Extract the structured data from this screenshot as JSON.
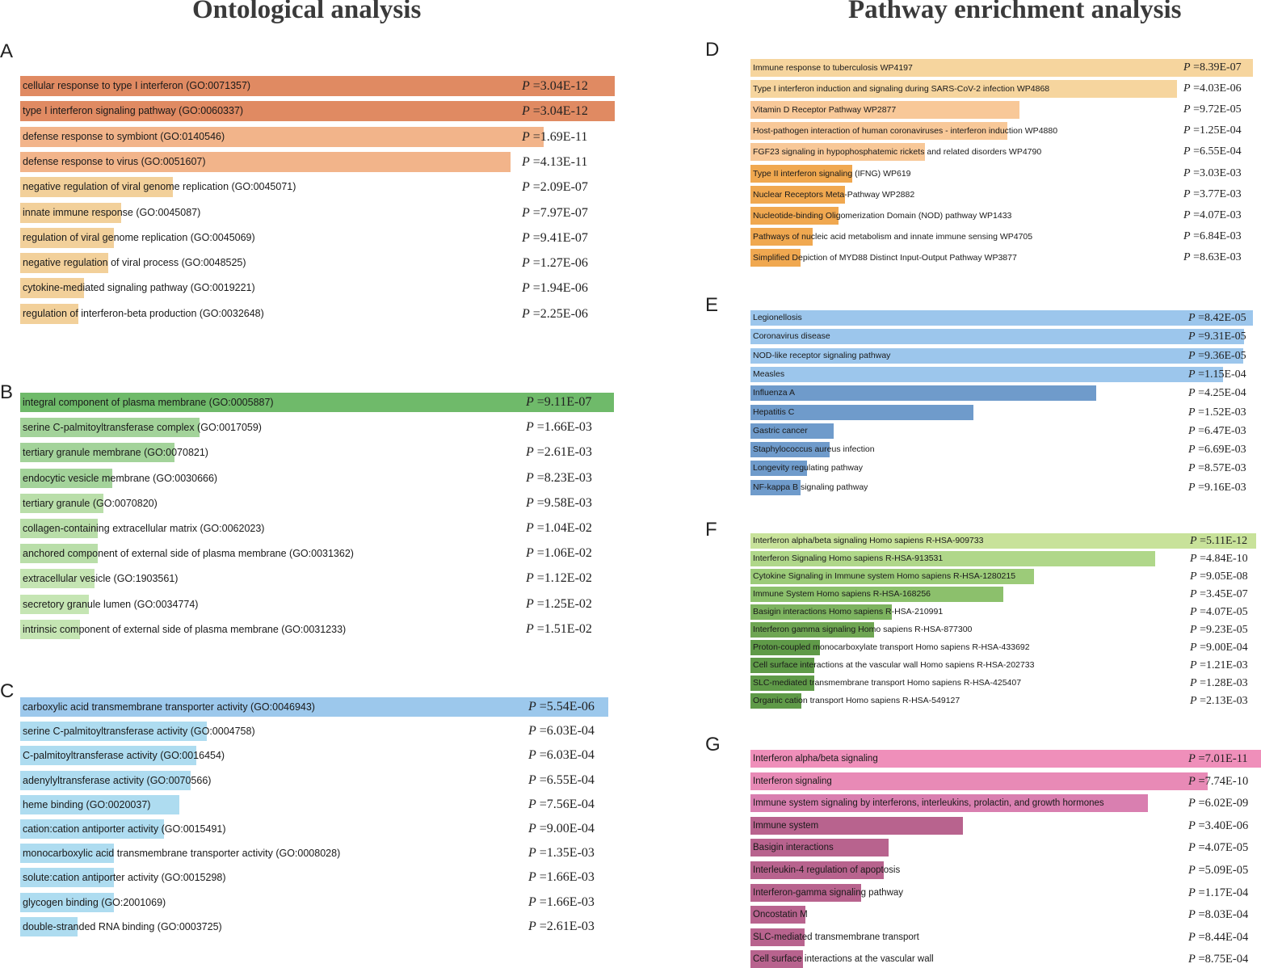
{
  "titles": {
    "left": "Ontological analysis",
    "right": "Pathway enrichment analysis"
  },
  "chart_data": [
    {
      "panel": "A",
      "type": "bar",
      "orientation": "horizontal",
      "value_label": "P =",
      "categories": [
        "cellular response to type I interferon (GO:0071357)",
        "type I interferon signaling pathway (GO:0060337)",
        "defense response to symbiont (GO:0140546)",
        "defense response to virus (GO:0051607)",
        "negative regulation of viral genome replication (GO:0045071)",
        "innate immune response (GO:0045087)",
        "regulation of viral genome replication (GO:0045069)",
        "negative regulation of viral process (GO:0048525)",
        "cytokine-mediated signaling pathway (GO:0019221)",
        "regulation of interferon-beta production (GO:0032648)"
      ],
      "p_values": [
        "3.04E-12",
        "3.04E-12",
        "1.69E-11",
        "4.13E-11",
        "2.09E-07",
        "7.97E-07",
        "9.41E-07",
        "1.27E-06",
        "1.94E-06",
        "2.25E-06"
      ],
      "relative_values": [
        1.0,
        1.0,
        0.88,
        0.825,
        0.257,
        0.17,
        0.157,
        0.148,
        0.108,
        0.098
      ],
      "colors": [
        "#e08a62",
        "#e08a62",
        "#f2b48a",
        "#f2b48a",
        "#f2d09a",
        "#f2d09a",
        "#f2d09a",
        "#f2d09a",
        "#f2d09a",
        "#f2d09a"
      ]
    },
    {
      "panel": "B",
      "type": "bar",
      "orientation": "horizontal",
      "value_label": "P =",
      "categories": [
        "integral component of plasma membrane (GO:0005887)",
        "serine C-palmitoyltransferase complex (GO:0017059)",
        "tertiary granule membrane (GO:0070821)",
        "endocytic vesicle membrane (GO:0030666)",
        "tertiary granule (GO:0070820)",
        "collagen-containing extracellular matrix (GO:0062023)",
        "anchored component of external side of plasma membrane (GO:0031362)",
        "extracellular vesicle (GO:1903561)",
        "secretory granule lumen (GO:0034774)",
        "intrinsic component of external side of plasma membrane (GO:0031233)"
      ],
      "p_values": [
        "9.11E-07",
        "1.66E-03",
        "2.61E-03",
        "8.23E-03",
        "9.58E-03",
        "1.04E-02",
        "1.06E-02",
        "1.12E-02",
        "1.25E-02",
        "1.51E-02"
      ],
      "relative_values": [
        1.0,
        0.302,
        0.26,
        0.155,
        0.14,
        0.13,
        0.13,
        0.125,
        0.115,
        0.1
      ],
      "colors": [
        "#6fba6a",
        "#a3d39a",
        "#a3d39a",
        "#a3d39a",
        "#b9dea9",
        "#b9dea9",
        "#b9dea9",
        "#c5e5b3",
        "#c5e5b3",
        "#c5e5b3"
      ]
    },
    {
      "panel": "C",
      "type": "bar",
      "orientation": "horizontal",
      "value_label": "P =",
      "categories": [
        "carboxylic acid transmembrane transporter activity (GO:0046943)",
        "serine C-palmitoyltransferase activity (GO:0004758)",
        "C-palmitoyltransferase activity (GO:0016454)",
        "adenylyltransferase activity (GO:0070566)",
        "heme binding (GO:0020037)",
        "cation:cation antiporter activity (GO:0015491)",
        "monocarboxylic acid transmembrane transporter activity (GO:0008028)",
        "solute:cation antiporter activity (GO:0015298)",
        "glycogen binding (GO:2001069)",
        "double-stranded RNA binding (GO:0003725)"
      ],
      "p_values": [
        "5.54E-06",
        "6.03E-04",
        "6.03E-04",
        "6.55E-04",
        "7.56E-04",
        "9.00E-04",
        "1.35E-03",
        "1.66E-03",
        "1.66E-03",
        "2.61E-03"
      ],
      "relative_values": [
        1.0,
        0.317,
        0.3,
        0.29,
        0.27,
        0.245,
        0.159,
        0.159,
        0.159,
        0.097
      ],
      "colors": [
        "#9cc8ec",
        "#aedcf0",
        "#aedcf0",
        "#aedcf0",
        "#aedcf0",
        "#aedcf0",
        "#aedcf0",
        "#aedcf0",
        "#aedcf0",
        "#aedcf0"
      ]
    },
    {
      "panel": "D",
      "type": "bar",
      "orientation": "horizontal",
      "value_label": "P =",
      "categories": [
        "Immune response to tuberculosis WP4197",
        "Type I interferon induction and signaling during SARS-CoV-2 infection WP4868",
        "Vitamin D Receptor Pathway WP2877",
        "Host-pathogen interaction of human coronaviruses - interferon induction WP4880",
        "FGF23 signaling in hypophosphatemic rickets and related disorders WP4790",
        "Type II interferon signaling (IFNG) WP619",
        "Nuclear Receptors Meta-Pathway WP2882",
        "Nucleotide-binding Oligomerization Domain (NOD) pathway WP1433",
        "Pathways of nucleic acid metabolism and innate immune sensing WP4705",
        "Simplified Depiction of MYD88 Distinct Input-Output Pathway WP3877"
      ],
      "p_values": [
        "8.39E-07",
        "4.03E-06",
        "9.72E-05",
        "1.25E-04",
        "6.55E-04",
        "3.03E-03",
        "3.77E-03",
        "4.07E-03",
        "6.84E-03",
        "8.63E-03"
      ],
      "relative_values": [
        1.0,
        0.849,
        0.536,
        0.512,
        0.348,
        0.202,
        0.188,
        0.176,
        0.124,
        0.1
      ],
      "colors": [
        "#f6d59e",
        "#f6d59e",
        "#f8c898",
        "#f8c898",
        "#f8c898",
        "#f0a850",
        "#f0a850",
        "#f0a850",
        "#f0a850",
        "#f0a850"
      ]
    },
    {
      "panel": "E",
      "type": "bar",
      "orientation": "horizontal",
      "value_label": "P =",
      "categories": [
        "Legionellosis",
        "Coronavirus disease",
        "NOD-like receptor signaling pathway",
        "Measles",
        "Influenza A",
        "Hepatitis C",
        "Gastric cancer",
        "Staphylococcus aureus infection",
        "Longevity regulating pathway",
        "NF-kappa B signaling pathway"
      ],
      "p_values": [
        "8.42E-05",
        "9.31E-05",
        "9.36E-05",
        "1.15E-04",
        "4.25E-04",
        "1.52E-03",
        "6.47E-03",
        "6.69E-03",
        "8.57E-03",
        "9.16E-03"
      ],
      "relative_values": [
        1.0,
        0.982,
        0.98,
        0.94,
        0.688,
        0.444,
        0.166,
        0.158,
        0.112,
        0.1
      ],
      "colors": [
        "#9cc6ec",
        "#9cc6ec",
        "#9cc6ec",
        "#9cc6ec",
        "#6f9bcb",
        "#6f9bcb",
        "#6f9bcb",
        "#6f9bcb",
        "#6f9bcb",
        "#6f9bcb"
      ]
    },
    {
      "panel": "F",
      "type": "bar",
      "orientation": "horizontal",
      "value_label": "P =",
      "categories": [
        "Interferon alpha/beta signaling Homo sapiens R-HSA-909733",
        "Interferon Signaling Homo sapiens R-HSA-913531",
        "Cytokine Signaling in Immune system Homo sapiens R-HSA-1280215",
        "Immune System Homo sapiens R-HSA-168256",
        "Basigin interactions Homo sapiens R-HSA-210991",
        "Interferon gamma signaling Homo sapiens R-HSA-877300",
        "Proton-coupled monocarboxylate transport Homo sapiens R-HSA-433692",
        "Cell surface interactions at the vascular wall Homo sapiens R-HSA-202733",
        "SLC-mediated transmembrane transport Homo sapiens R-HSA-425407",
        "Organic cation transport Homo sapiens R-HSA-549127"
      ],
      "p_values": [
        "5.11E-12",
        "4.84E-10",
        "9.05E-08",
        "3.45E-07",
        "4.07E-05",
        "9.23E-05",
        "9.00E-04",
        "1.21E-03",
        "1.28E-03",
        "2.13E-03"
      ],
      "relative_values": [
        1.0,
        0.8,
        0.561,
        0.5,
        0.28,
        0.244,
        0.137,
        0.126,
        0.126,
        0.1
      ],
      "colors": [
        "#c8e29a",
        "#b0d78a",
        "#9ccb79",
        "#8cc06c",
        "#7db35f",
        "#6fa653",
        "#5f9a48",
        "#5f9a48",
        "#5f9a48",
        "#5f9a48"
      ]
    },
    {
      "panel": "G",
      "type": "bar",
      "orientation": "horizontal",
      "value_label": "P =",
      "categories": [
        "Interferon alpha/beta signaling",
        "Interferon signaling",
        "Immune system signaling by interferons, interleukins, prolactin, and growth hormones",
        "Immune system",
        "Basigin interactions",
        "Interleukin-4 regulation of apoptosis",
        "Interferon-gamma signaling pathway",
        "Oncostatin M",
        "SLC-mediated transmembrane transport",
        "Cell surface interactions at the vascular wall"
      ],
      "p_values": [
        "7.01E-11",
        "7.74E-10",
        "6.02E-09",
        "3.40E-06",
        "4.07E-05",
        "5.09E-05",
        "1.17E-04",
        "8.03E-04",
        "8.44E-04",
        "8.75E-04"
      ],
      "relative_values": [
        1.0,
        0.896,
        0.778,
        0.416,
        0.27,
        0.261,
        0.216,
        0.108,
        0.106,
        0.103
      ],
      "colors": [
        "#ef8fba",
        "#e88ab6",
        "#d97fb0",
        "#b8638e",
        "#b8638e",
        "#b8638e",
        "#b8638e",
        "#b8638e",
        "#b8638e",
        "#b8638e"
      ]
    }
  ]
}
